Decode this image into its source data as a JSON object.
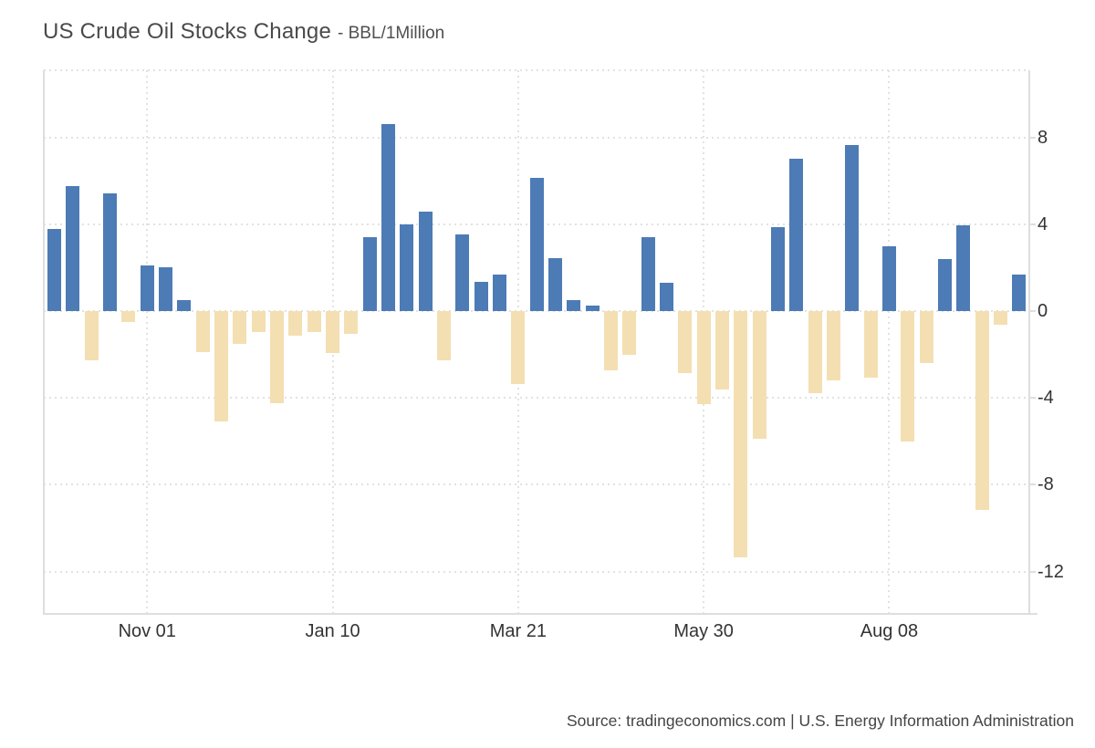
{
  "header": {
    "title": "US Crude Oil Stocks Change",
    "subtitle": "- BBL/1Million"
  },
  "footer": {
    "source": "Source: tradingeconomics.com | U.S. Energy Information Administration"
  },
  "chart_data": {
    "type": "bar",
    "title": "US Crude Oil Stocks Change",
    "unit_label": "BBL/1Million",
    "values": [
      3.8,
      5.75,
      -2.25,
      5.4,
      -0.5,
      2.1,
      2.0,
      0.5,
      -1.9,
      -5.1,
      -1.5,
      -0.95,
      -4.25,
      -1.15,
      -0.95,
      -1.95,
      -1.05,
      3.4,
      8.6,
      4.0,
      4.6,
      -2.25,
      3.55,
      1.35,
      1.7,
      -3.35,
      6.15,
      2.45,
      0.5,
      0.25,
      -2.75,
      -2.0,
      3.4,
      1.3,
      -2.85,
      -4.3,
      -3.6,
      -11.35,
      -5.9,
      3.85,
      7.0,
      -3.8,
      -3.2,
      7.65,
      -3.05,
      3.0,
      -6.0,
      -2.4,
      2.4,
      3.95,
      -9.15,
      -0.65,
      1.7
    ],
    "x_axis": {
      "tick_labels": [
        "Nov 01",
        "Jan 10",
        "Mar 21",
        "May 30",
        "Aug 08"
      ],
      "tick_bar_indices": [
        5,
        15,
        25,
        35,
        45
      ]
    },
    "y_axis": {
      "ticks": [
        8,
        4,
        0,
        -4,
        -8,
        -12
      ],
      "range": [
        -13.9,
        11.1
      ],
      "position": "right"
    },
    "grid": {
      "style": "dotted",
      "on": true
    },
    "legend": "none",
    "colors": {
      "positive_bar": "#4d7bb5",
      "negative_bar": "#f4dfb2",
      "gridline": "#e2e2e2",
      "axis_line": "#dedede",
      "label_text": "#333333"
    }
  }
}
